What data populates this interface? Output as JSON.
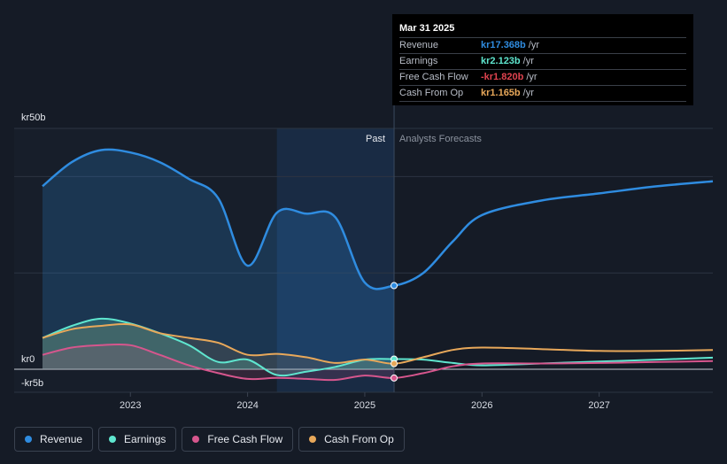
{
  "chart_data": {
    "type": "line",
    "y_axis": {
      "top_label": "kr50b",
      "zero_label": "kr0",
      "bottom_label": "-kr5b",
      "ylim": [
        -5,
        50
      ]
    },
    "x_axis": {
      "ticks": [
        "2023",
        "2024",
        "2025",
        "2026",
        "2027"
      ],
      "xlim": [
        2022.25,
        2027.97
      ]
    },
    "sections": {
      "past": "Past",
      "forecast": "Analysts Forecasts",
      "divider_x": 2025.25,
      "shade_start_x": 2024.25
    },
    "series": [
      {
        "name": "Revenue",
        "color": "#2f8ce0",
        "x": [
          2022.25,
          2022.5,
          2022.75,
          2023.0,
          2023.25,
          2023.5,
          2023.75,
          2024.0,
          2024.25,
          2024.5,
          2024.75,
          2025.0,
          2025.25,
          2025.5,
          2025.75,
          2026.0,
          2026.5,
          2027.0,
          2027.5,
          2027.97
        ],
        "y": [
          38,
          43,
          45.5,
          45,
          43,
          39.5,
          35.5,
          21.5,
          32.5,
          32.3,
          31.5,
          18,
          17.368,
          20,
          26.5,
          32,
          35,
          36.5,
          38,
          39
        ]
      },
      {
        "name": "Earnings",
        "color": "#5fe6cf",
        "x": [
          2022.25,
          2022.5,
          2022.75,
          2023.0,
          2023.25,
          2023.5,
          2023.75,
          2024.0,
          2024.25,
          2024.5,
          2024.75,
          2025.0,
          2025.25,
          2025.5,
          2025.75,
          2026.0,
          2026.5,
          2027.0,
          2027.5,
          2027.97
        ],
        "y": [
          6.5,
          9,
          10.5,
          9.5,
          7.5,
          5,
          1.5,
          2,
          -1.2,
          -0.5,
          0.5,
          2,
          2.123,
          2,
          1.3,
          0.8,
          1.2,
          1.6,
          2,
          2.4
        ]
      },
      {
        "name": "Free Cash Flow",
        "color": "#d6568d",
        "x": [
          2022.25,
          2022.5,
          2022.75,
          2023.0,
          2023.25,
          2023.5,
          2023.75,
          2024.0,
          2024.25,
          2024.5,
          2024.75,
          2025.0,
          2025.25,
          2025.5,
          2025.75,
          2026.0,
          2026.5,
          2027.0,
          2027.5,
          2027.97
        ],
        "y": [
          3,
          4.5,
          5,
          5,
          3,
          0.8,
          -0.8,
          -2,
          -1.8,
          -2,
          -2.2,
          -1.3,
          -1.82,
          -0.8,
          0.6,
          1.2,
          1.2,
          1.3,
          1.5,
          1.7
        ]
      },
      {
        "name": "Cash From Op",
        "color": "#e8a85a",
        "x": [
          2022.25,
          2022.5,
          2022.75,
          2023.0,
          2023.25,
          2023.5,
          2023.75,
          2024.0,
          2024.25,
          2024.5,
          2024.75,
          2025.0,
          2025.25,
          2025.5,
          2025.75,
          2026.0,
          2026.5,
          2027.0,
          2027.5,
          2027.97
        ],
        "y": [
          6.5,
          8.3,
          9,
          9.3,
          7.5,
          6.5,
          5.5,
          3,
          3.2,
          2.5,
          1.3,
          2,
          1.165,
          2.5,
          4,
          4.5,
          4.2,
          3.8,
          3.8,
          4
        ]
      }
    ],
    "tooltip": {
      "date": "Mar 31 2025",
      "rows": [
        {
          "label": "Revenue",
          "value": "kr17.368b",
          "unit": "/yr",
          "color": "#2f8ce0"
        },
        {
          "label": "Earnings",
          "value": "kr2.123b",
          "unit": "/yr",
          "color": "#5fe6cf"
        },
        {
          "label": "Free Cash Flow",
          "value": "-kr1.820b",
          "unit": "/yr",
          "color": "#e0434f"
        },
        {
          "label": "Cash From Op",
          "value": "kr1.165b",
          "unit": "/yr",
          "color": "#e8a85a"
        }
      ]
    }
  },
  "legend": [
    {
      "label": "Revenue",
      "color": "#2f8ce0"
    },
    {
      "label": "Earnings",
      "color": "#5fe6cf"
    },
    {
      "label": "Free Cash Flow",
      "color": "#d6568d"
    },
    {
      "label": "Cash From Op",
      "color": "#e8a85a"
    }
  ]
}
